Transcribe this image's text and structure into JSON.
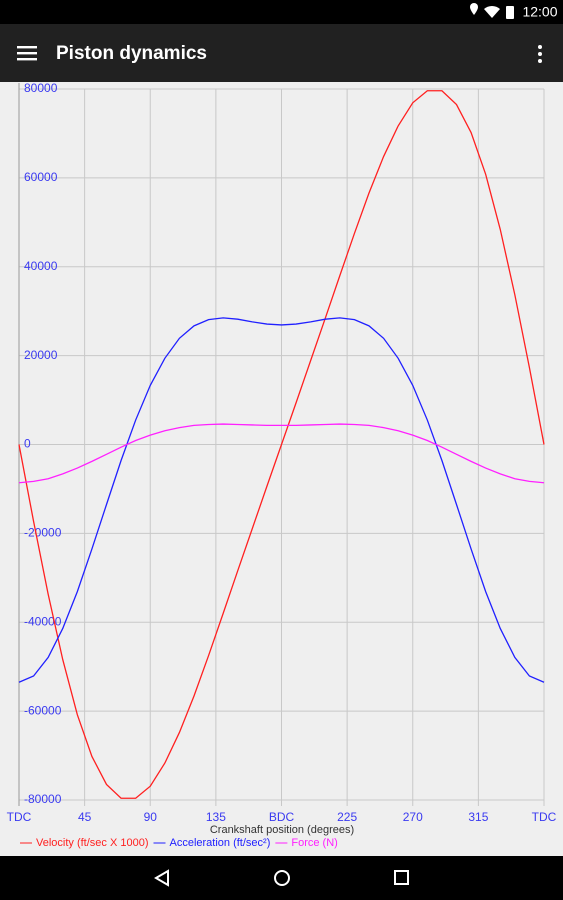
{
  "status_bar": {
    "time": "12:00"
  },
  "app_bar": {
    "title": "Piston dynamics"
  },
  "chart_data": {
    "type": "line",
    "x_label": "Crankshaft position (degrees)",
    "x": [
      0,
      10,
      20,
      30,
      40,
      50,
      60,
      70,
      80,
      90,
      100,
      110,
      120,
      130,
      140,
      150,
      160,
      170,
      180,
      190,
      200,
      210,
      220,
      230,
      240,
      250,
      260,
      270,
      280,
      290,
      300,
      310,
      320,
      330,
      340,
      350,
      360
    ],
    "series": [
      {
        "name": "Velocity (ft/sec X 1000)",
        "color": "#ff2020",
        "values": [
          0,
          -17300,
          -33700,
          -48400,
          -60800,
          -70200,
          -76500,
          -79600,
          -79600,
          -76900,
          -71700,
          -64800,
          -56600,
          -47500,
          -38000,
          -28400,
          -18900,
          -9400,
          0,
          9400,
          18900,
          28400,
          38000,
          47500,
          56600,
          64800,
          71700,
          76900,
          79600,
          79600,
          76500,
          70200,
          60800,
          48400,
          33700,
          17300,
          0
        ]
      },
      {
        "name": "Acceleration (ft/sec²)",
        "color": "#2020ff",
        "values": [
          -53500,
          -52100,
          -47900,
          -41400,
          -33100,
          -23500,
          -13500,
          -3600,
          5500,
          13300,
          19400,
          23900,
          26700,
          28100,
          28500,
          28200,
          27600,
          27100,
          26900,
          27100,
          27600,
          28200,
          28500,
          28100,
          26700,
          23900,
          19400,
          13300,
          5500,
          -3600,
          -13500,
          -23500,
          -33100,
          -41400,
          -47900,
          -52100,
          -53500
        ]
      },
      {
        "name": "Force (N)",
        "color": "#ff20ff",
        "values": [
          -8600,
          -8300,
          -7700,
          -6600,
          -5300,
          -3800,
          -2200,
          -600,
          900,
          2100,
          3100,
          3800,
          4300,
          4500,
          4600,
          4500,
          4400,
          4300,
          4300,
          4300,
          4400,
          4500,
          4600,
          4500,
          4300,
          3800,
          3100,
          2100,
          900,
          -600,
          -2200,
          -3800,
          -5300,
          -6600,
          -7700,
          -8300,
          -8600
        ]
      }
    ],
    "xlim": [
      0,
      360
    ],
    "xticks": [
      {
        "value": 0,
        "label": "TDC"
      },
      45,
      90,
      135,
      {
        "value": 180,
        "label": "BDC"
      },
      225,
      270,
      315,
      {
        "value": 360,
        "label": "TDC"
      }
    ],
    "ylim": [
      -80000,
      80000
    ],
    "yticks": [
      80000,
      60000,
      40000,
      20000,
      0,
      -20000,
      -40000,
      -60000,
      -80000
    ],
    "grid": true
  }
}
